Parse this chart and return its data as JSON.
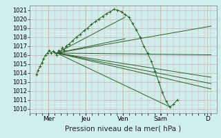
{
  "bg_color": "#d0eeea",
  "plot_bg_color": "#d0eeea",
  "grid_major_color": "#c8a0a0",
  "grid_minor_color": "#ddbcbc",
  "line_color": "#2a5e2a",
  "ylim": [
    1009.5,
    1021.5
  ],
  "yticks": [
    1010,
    1011,
    1012,
    1013,
    1014,
    1015,
    1016,
    1017,
    1018,
    1019,
    1020,
    1021
  ],
  "xlim": [
    0.0,
    5.0
  ],
  "xtick_positions": [
    0.5,
    1.5,
    2.5,
    3.5,
    4.75
  ],
  "xtick_labels": [
    "Mer",
    "Jeu",
    "Ven",
    "Sam",
    "D"
  ],
  "xlabel": "Pression niveau de la mer( hPa )",
  "xlabel_fontsize": 7.5,
  "ylabel_fontsize": 6,
  "xtick_fontsize": 6.5,
  "ytick_fontsize": 6,
  "main_line": {
    "x": [
      0.18,
      0.22,
      0.27,
      0.32,
      0.37,
      0.42,
      0.47,
      0.52,
      0.57,
      0.62,
      0.67,
      0.72,
      0.77,
      0.82,
      0.87,
      0.92,
      0.97,
      1.05,
      1.15,
      1.25,
      1.35,
      1.45,
      1.55,
      1.65,
      1.75,
      1.85,
      1.95,
      2.05,
      2.15,
      2.25,
      2.35,
      2.45,
      2.55,
      2.65,
      2.75,
      2.85,
      2.95,
      3.05,
      3.15,
      3.25,
      3.35,
      3.45,
      3.55,
      3.65,
      3.75,
      3.85,
      3.95
    ],
    "y": [
      1013.8,
      1014.3,
      1014.7,
      1015.1,
      1015.6,
      1016.0,
      1016.2,
      1016.5,
      1016.2,
      1016.4,
      1016.3,
      1016.0,
      1016.5,
      1016.2,
      1016.8,
      1016.5,
      1017.0,
      1017.2,
      1017.6,
      1018.0,
      1018.3,
      1018.7,
      1019.0,
      1019.4,
      1019.7,
      1020.0,
      1020.3,
      1020.6,
      1020.8,
      1021.1,
      1021.0,
      1020.8,
      1020.5,
      1020.2,
      1019.5,
      1018.8,
      1018.0,
      1017.0,
      1016.2,
      1015.3,
      1014.2,
      1013.0,
      1011.8,
      1010.8,
      1010.2,
      1010.5,
      1011.0
    ]
  },
  "forecast_lines": [
    {
      "x": [
        0.72,
        4.85
      ],
      "y": [
        1016.2,
        1019.2
      ]
    },
    {
      "x": [
        0.72,
        4.85
      ],
      "y": [
        1016.2,
        1016.0
      ]
    },
    {
      "x": [
        0.72,
        4.85
      ],
      "y": [
        1016.2,
        1013.5
      ]
    },
    {
      "x": [
        0.72,
        4.85
      ],
      "y": [
        1016.2,
        1012.8
      ]
    },
    {
      "x": [
        0.72,
        4.85
      ],
      "y": [
        1016.2,
        1012.2
      ]
    },
    {
      "x": [
        0.72,
        3.75
      ],
      "y": [
        1016.2,
        1010.2
      ]
    },
    {
      "x": [
        0.72,
        2.55
      ],
      "y": [
        1016.2,
        1020.2
      ]
    },
    {
      "x": [
        0.72,
        2.55
      ],
      "y": [
        1016.2,
        1017.8
      ]
    }
  ],
  "marker_size": 2.2,
  "line_width": 0.7,
  "marker_lw": 0.7
}
